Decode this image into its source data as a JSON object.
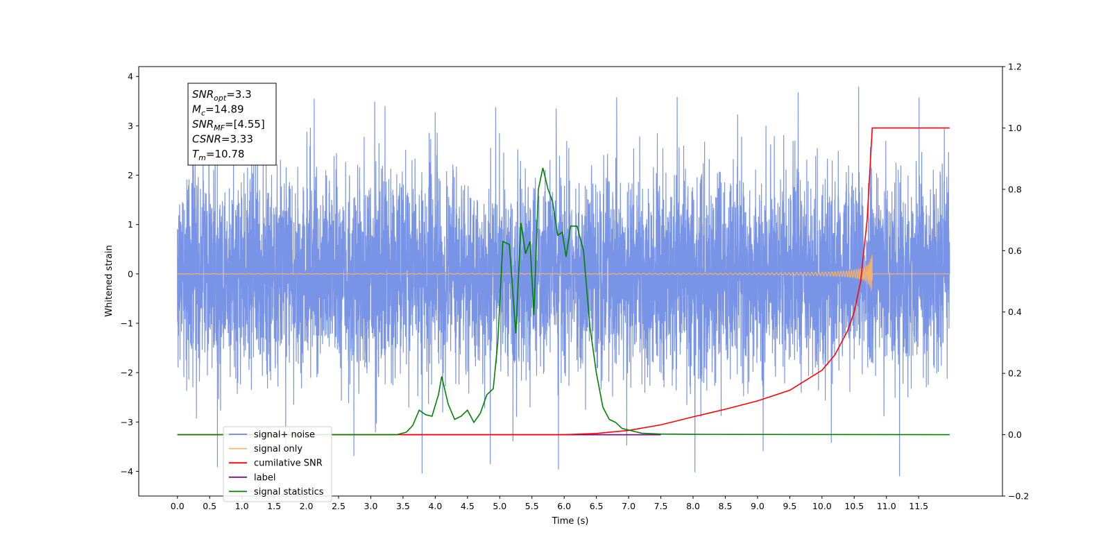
{
  "chart_data": {
    "type": "line",
    "xlabel": "Time (s)",
    "ylabel_left": "Whitened strain",
    "xlim": [
      -0.6,
      12.8
    ],
    "ylim_left": [
      -4.5,
      4.2
    ],
    "ylim_right": [
      -0.2,
      1.2
    ],
    "x_ticks": [
      "0.0",
      "0.5",
      "1.0",
      "1.5",
      "2.0",
      "2.5",
      "3.0",
      "3.5",
      "4.0",
      "4.5",
      "5.0",
      "5.5",
      "6.0",
      "6.5",
      "7.0",
      "7.5",
      "8.0",
      "8.5",
      "9.0",
      "9.5",
      "10.0",
      "10.5",
      "11.0",
      "11.5"
    ],
    "y_ticks_left": [
      "−4",
      "−3",
      "−2",
      "−1",
      "0",
      "1",
      "2",
      "3",
      "4"
    ],
    "y_ticks_right": [
      "−0.2",
      "0.0",
      "0.2",
      "0.4",
      "0.6",
      "0.8",
      "1.0",
      "1.2"
    ],
    "grid": false,
    "legend_position": "lower-left",
    "info_box": {
      "lines": [
        {
          "name": "SNR",
          "sub": "opt",
          "value": "=3.3"
        },
        {
          "name": "M",
          "sub": "c",
          "value": "=14.89"
        },
        {
          "name": "SNR",
          "sub": "MF",
          "value": "=[4.55]"
        },
        {
          "name": "CSNR",
          "sub": "",
          "value": "=3.33"
        },
        {
          "name": "T",
          "sub": "m",
          "value": "=10.78"
        }
      ]
    },
    "series": [
      {
        "name": "signal+ noise",
        "color": "#6a88e4",
        "axis": "left",
        "x_range": [
          0,
          11.98
        ],
        "noise_sigma": 1.0,
        "peak_max": 3.8,
        "peak_min": -4.1
      },
      {
        "name": "signal only",
        "color": "#f5b26b",
        "axis": "left",
        "merger_time": 10.78,
        "peak_amplitude": 0.7
      },
      {
        "name": "cumilative SNR",
        "color": "#ff0000",
        "axis": "right",
        "points": [
          [
            0.0,
            0.0
          ],
          [
            6.0,
            0.0
          ],
          [
            6.5,
            0.004
          ],
          [
            7.0,
            0.014
          ],
          [
            7.5,
            0.032
          ],
          [
            8.0,
            0.058
          ],
          [
            8.5,
            0.083
          ],
          [
            9.0,
            0.11
          ],
          [
            9.5,
            0.145
          ],
          [
            10.0,
            0.21
          ],
          [
            10.2,
            0.26
          ],
          [
            10.4,
            0.34
          ],
          [
            10.5,
            0.4
          ],
          [
            10.6,
            0.5
          ],
          [
            10.7,
            0.7
          ],
          [
            10.78,
            1.0
          ],
          [
            11.98,
            1.0
          ]
        ]
      },
      {
        "name": "label",
        "color": "#7b0f7b",
        "axis": "right",
        "points": [
          [
            3.5,
            0.0
          ],
          [
            7.5,
            0.0
          ]
        ]
      },
      {
        "name": "signal statistics",
        "color": "#008000",
        "axis": "right",
        "points": [
          [
            0.0,
            0.0
          ],
          [
            3.4,
            0.0
          ],
          [
            3.55,
            0.008
          ],
          [
            3.65,
            0.03
          ],
          [
            3.75,
            0.08
          ],
          [
            3.85,
            0.065
          ],
          [
            3.95,
            0.06
          ],
          [
            4.05,
            0.13
          ],
          [
            4.1,
            0.19
          ],
          [
            4.2,
            0.1
          ],
          [
            4.3,
            0.05
          ],
          [
            4.4,
            0.06
          ],
          [
            4.5,
            0.08
          ],
          [
            4.6,
            0.04
          ],
          [
            4.7,
            0.07
          ],
          [
            4.8,
            0.13
          ],
          [
            4.9,
            0.15
          ],
          [
            4.97,
            0.3
          ],
          [
            5.05,
            0.63
          ],
          [
            5.15,
            0.62
          ],
          [
            5.25,
            0.33
          ],
          [
            5.33,
            0.69
          ],
          [
            5.4,
            0.59
          ],
          [
            5.47,
            0.63
          ],
          [
            5.53,
            0.39
          ],
          [
            5.6,
            0.8
          ],
          [
            5.67,
            0.87
          ],
          [
            5.75,
            0.8
          ],
          [
            5.82,
            0.76
          ],
          [
            5.9,
            0.65
          ],
          [
            5.97,
            0.66
          ],
          [
            6.03,
            0.58
          ],
          [
            6.1,
            0.68
          ],
          [
            6.2,
            0.68
          ],
          [
            6.3,
            0.6
          ],
          [
            6.4,
            0.35
          ],
          [
            6.5,
            0.2
          ],
          [
            6.6,
            0.09
          ],
          [
            6.7,
            0.05
          ],
          [
            6.8,
            0.04
          ],
          [
            6.9,
            0.02
          ],
          [
            7.0,
            0.015
          ],
          [
            7.2,
            0.005
          ],
          [
            7.5,
            0.002
          ],
          [
            8.0,
            0.001
          ],
          [
            11.98,
            0.0
          ]
        ]
      }
    ]
  }
}
